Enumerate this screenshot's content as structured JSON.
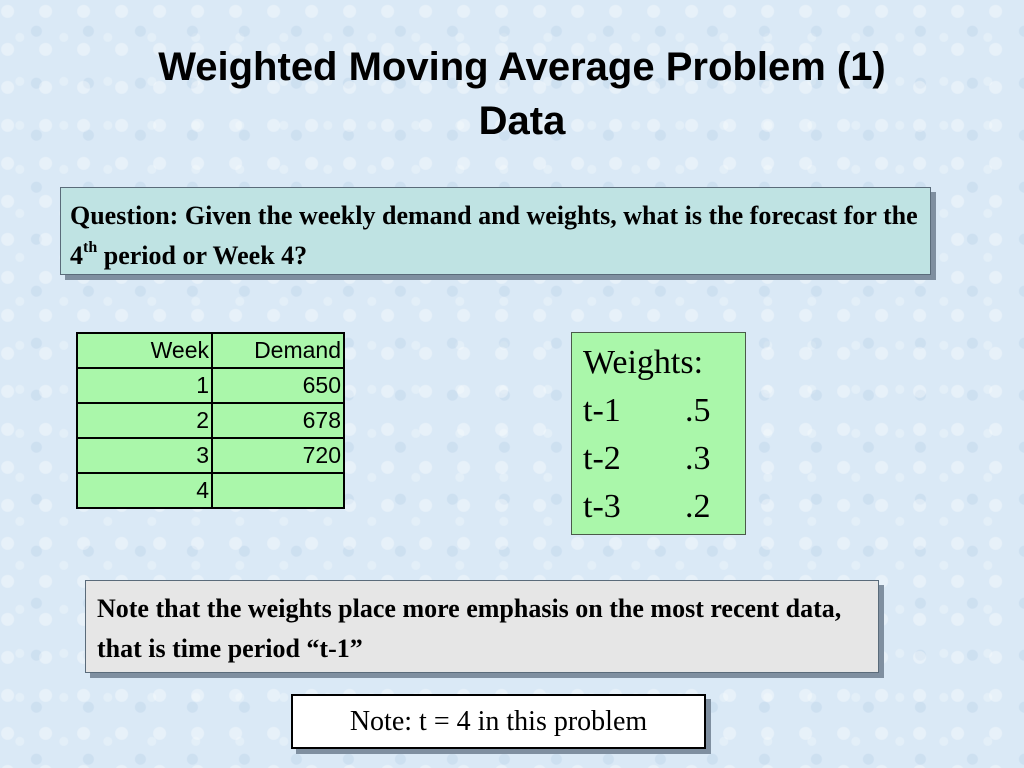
{
  "title": {
    "line1": "Weighted Moving Average Problem (1)",
    "line2": "Data"
  },
  "question": {
    "text_before": "Question: Given the weekly demand and weights, what is the forecast for the 4",
    "superscript": "th",
    "text_after": " period or Week 4?"
  },
  "table": {
    "headers": [
      "Week",
      "Demand"
    ],
    "rows": [
      [
        "1",
        "650"
      ],
      [
        "2",
        "678"
      ],
      [
        "3",
        "720"
      ],
      [
        "4",
        ""
      ]
    ]
  },
  "weights": {
    "heading": "Weights:",
    "items": [
      {
        "lag": "t-1",
        "value": ".5"
      },
      {
        "lag": "t-2",
        "value": ".3"
      },
      {
        "lag": "t-3",
        "value": ".2"
      }
    ]
  },
  "note": {
    "text": "Note that the weights place more emphasis on the most recent data, that is time period “t-1”"
  },
  "note2": {
    "text": "Note: t = 4 in this problem"
  }
}
